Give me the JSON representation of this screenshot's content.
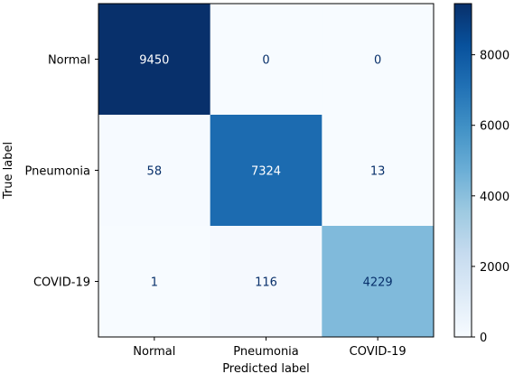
{
  "chart_data": {
    "type": "heatmap",
    "title": "",
    "xlabel": "Predicted label",
    "ylabel": "True label",
    "x_categories": [
      "Normal",
      "Pneumonia",
      "COVID-19"
    ],
    "y_categories": [
      "Normal",
      "Pneumonia",
      "COVID-19"
    ],
    "values": [
      [
        9450,
        0,
        0
      ],
      [
        58,
        7324,
        13
      ],
      [
        1,
        116,
        4229
      ]
    ],
    "colormap": "Blues",
    "color_range": [
      0,
      9450
    ],
    "colorbar_ticks": [
      0,
      2000,
      4000,
      6000,
      8000
    ],
    "colorbar_tick_labels": [
      "0",
      "2000",
      "4000",
      "6000",
      "8000"
    ],
    "text_colors": {
      "dark_cell": "#ffffff",
      "light_cell": "#08306b"
    }
  }
}
